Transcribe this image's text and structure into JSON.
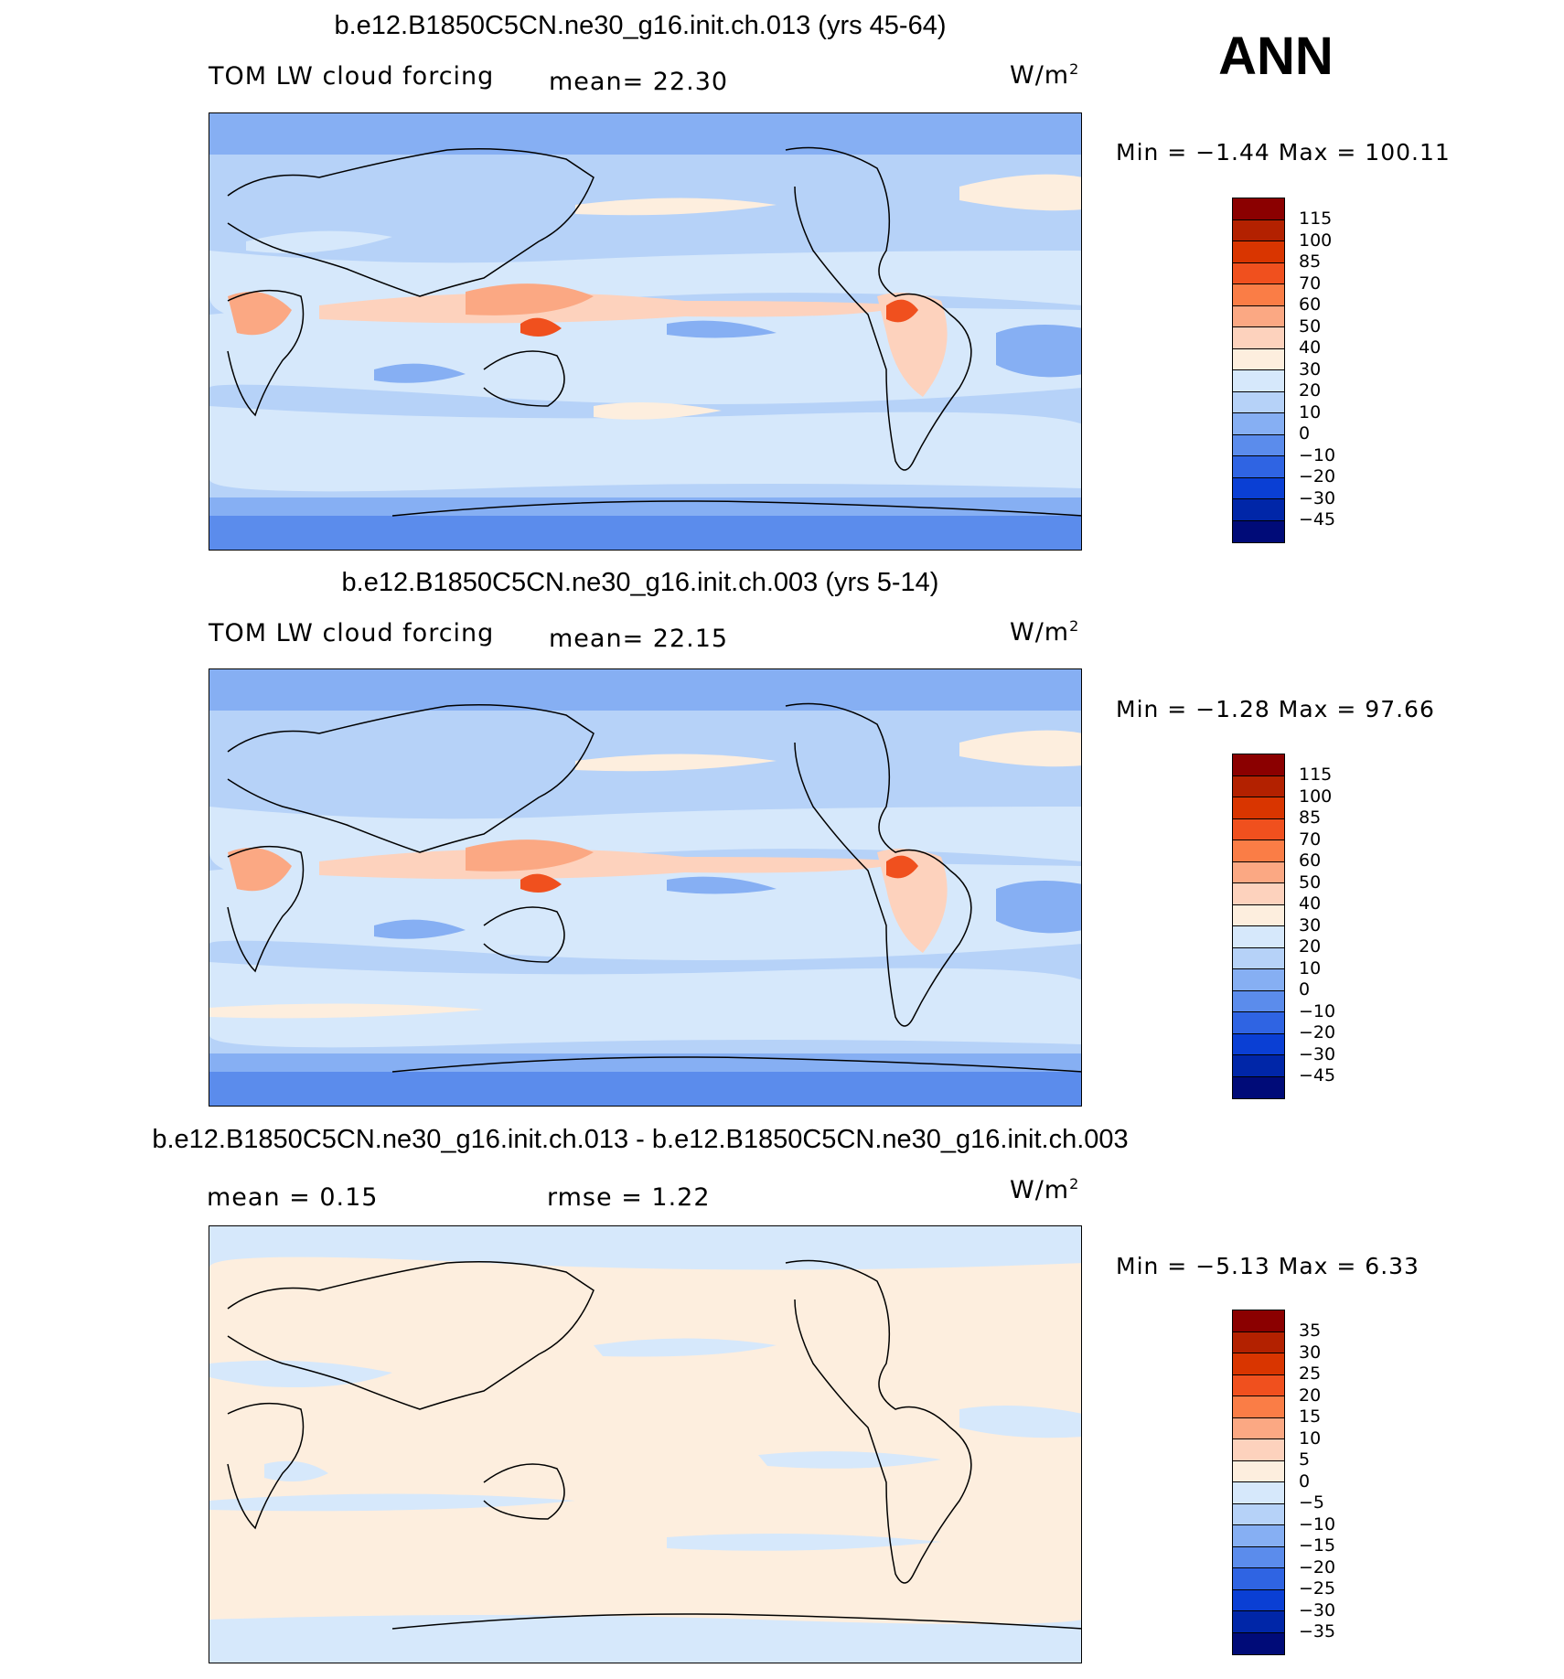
{
  "season": "ANN",
  "panels": [
    {
      "title": "b.e12.B1850C5CN.ne30_g16.init.ch.013 (yrs 45-64)",
      "variable": "TOM LW cloud forcing",
      "stat1": "mean=   22.30",
      "stat2": "",
      "units": "W/m",
      "units_exp": "2",
      "minmax": "Min =   −1.44  Max =  100.11",
      "levels": [
        "115",
        "100",
        "85",
        "70",
        "60",
        "50",
        "40",
        "30",
        "20",
        "10",
        "0",
        "−10",
        "−20",
        "−30",
        "−45"
      ],
      "colors": [
        "#8b0000",
        "#b32100",
        "#d93500",
        "#f0501e",
        "#fa7d46",
        "#fba883",
        "#fdd2bd",
        "#fdeede",
        "#d6e8fb",
        "#b6d2f8",
        "#86aff3",
        "#5b8cec",
        "#2f64e3",
        "#0a3fd4",
        "#0026a8",
        "#000b78"
      ]
    },
    {
      "title": "b.e12.B1850C5CN.ne30_g16.init.ch.003 (yrs 5-14)",
      "variable": "TOM LW cloud forcing",
      "stat1": "mean=   22.15",
      "stat2": "",
      "units": "W/m",
      "units_exp": "2",
      "minmax": "Min =   −1.28  Max =   97.66",
      "levels": [
        "115",
        "100",
        "85",
        "70",
        "60",
        "50",
        "40",
        "30",
        "20",
        "10",
        "0",
        "−10",
        "−20",
        "−30",
        "−45"
      ],
      "colors": [
        "#8b0000",
        "#b32100",
        "#d93500",
        "#f0501e",
        "#fa7d46",
        "#fba883",
        "#fdd2bd",
        "#fdeede",
        "#d6e8fb",
        "#b6d2f8",
        "#86aff3",
        "#5b8cec",
        "#2f64e3",
        "#0a3fd4",
        "#0026a8",
        "#000b78"
      ]
    },
    {
      "title": "b.e12.B1850C5CN.ne30_g16.init.ch.013 - b.e12.B1850C5CN.ne30_g16.init.ch.003",
      "variable": "",
      "stat1": "mean =    0.15",
      "stat2": "rmse =    1.22",
      "units": "W/m",
      "units_exp": "2",
      "minmax": "Min =   −5.13  Max =    6.33",
      "levels": [
        "35",
        "30",
        "25",
        "20",
        "15",
        "10",
        "5",
        "0",
        "−5",
        "−10",
        "−15",
        "−20",
        "−25",
        "−30",
        "−35"
      ],
      "colors": [
        "#8b0000",
        "#b32100",
        "#d93500",
        "#f0501e",
        "#fa7d46",
        "#fba883",
        "#fdd2bd",
        "#fdeede",
        "#d6e8fb",
        "#b6d2f8",
        "#86aff3",
        "#5b8cec",
        "#2f64e3",
        "#0a3fd4",
        "#0026a8",
        "#000b78"
      ]
    }
  ]
}
